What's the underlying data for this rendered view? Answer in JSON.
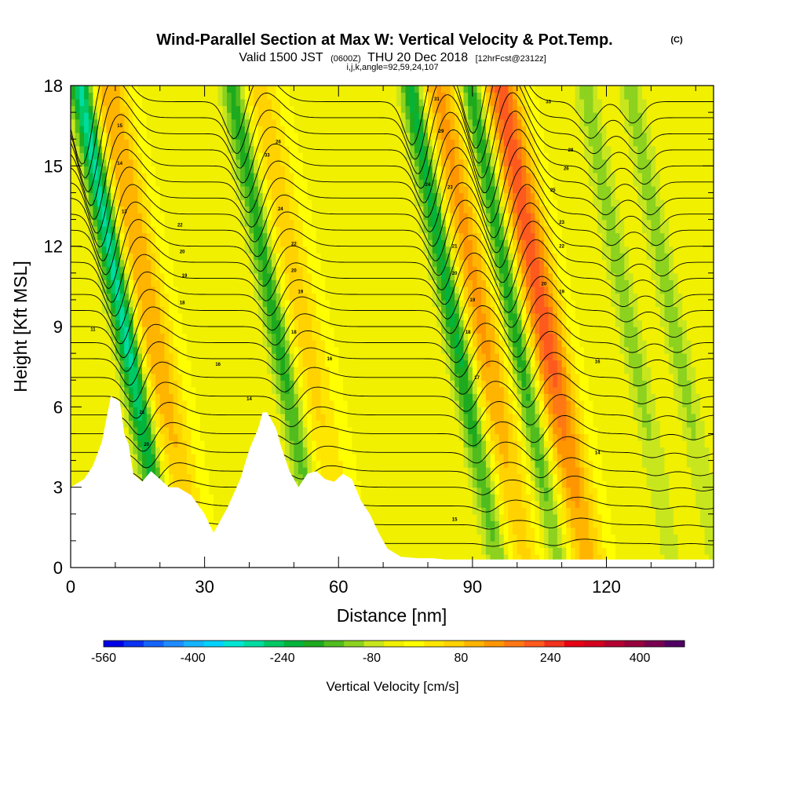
{
  "chart_data": {
    "type": "heatmap",
    "title": "Wind-Parallel Section at Max W: Vertical Velocity & Pot.Temp.",
    "title_mark": "(C)",
    "subtitle": {
      "valid_prefix": "Valid 1500 JST",
      "utc": "(0600Z)",
      "date": "THU 20 Dec 2018",
      "forecast": "[12hrFcst@2312z]"
    },
    "subtitle2": "i,j,k,angle=92,59,24,107",
    "xlabel": "Distance [nm]",
    "ylabel": "Height [Kft MSL]",
    "xlim": [
      0,
      144
    ],
    "ylim": [
      0,
      18
    ],
    "x_ticks": [
      0,
      30,
      60,
      90,
      120
    ],
    "x_tick_labels": [
      "0",
      "30",
      "60",
      "90",
      "120"
    ],
    "y_ticks": [
      0,
      3,
      6,
      9,
      12,
      15,
      18
    ],
    "y_tick_labels": [
      "0",
      "3",
      "6",
      "9",
      "12",
      "15",
      "18"
    ],
    "colorbar": {
      "label": "Vertical Velocity [cm/s]",
      "min": -560,
      "max": 480,
      "step": 40,
      "tick_values": [
        -560,
        -400,
        -240,
        -80,
        80,
        240,
        400
      ],
      "tick_labels": [
        "-560",
        "-400",
        "-240",
        "-80",
        "80",
        "240",
        "400"
      ],
      "colors": [
        "#0000e6",
        "#0a32f0",
        "#1464fa",
        "#1e8cff",
        "#14b4ff",
        "#00d2ff",
        "#00e6d2",
        "#00dca0",
        "#00c864",
        "#00b43c",
        "#1eaa1e",
        "#50bc1e",
        "#8cd21e",
        "#c8e61e",
        "#f0f000",
        "#ffff00",
        "#ffe600",
        "#ffd200",
        "#ffb400",
        "#ff9600",
        "#ff7814",
        "#ff5a1e",
        "#f0321e",
        "#e60014",
        "#d2001e",
        "#b40032",
        "#96003c",
        "#780050",
        "#500064"
      ]
    },
    "vertical_velocity_extrema": [
      {
        "x": 11,
        "w": -300
      },
      {
        "x": 17,
        "w": 170
      },
      {
        "x": 45,
        "w": -180
      },
      {
        "x": 51,
        "w": 110
      },
      {
        "x": 85,
        "w": -220
      },
      {
        "x": 91,
        "w": 180
      },
      {
        "x": 98.5,
        "w": -200
      },
      {
        "x": 105,
        "w": 270
      },
      {
        "x": 124,
        "w": -90
      },
      {
        "x": 134,
        "w": -90
      }
    ],
    "terrain_profile": {
      "x": [
        0,
        3,
        5,
        7,
        9,
        11,
        12,
        13,
        14,
        16,
        18,
        20,
        22,
        24,
        27,
        30,
        32,
        35,
        38,
        40,
        42,
        43,
        44,
        46,
        47,
        49,
        51,
        53,
        55,
        57,
        59,
        61,
        63,
        65,
        67,
        69,
        71,
        74,
        78,
        81,
        84,
        87,
        90,
        100,
        110,
        120,
        130,
        144
      ],
      "height_kft": [
        3,
        3.3,
        3.8,
        4.7,
        6.4,
        6.2,
        5.0,
        4.6,
        3.5,
        3.2,
        3.6,
        3.3,
        3.0,
        3.0,
        2.7,
        2.0,
        1.3,
        2.2,
        3.3,
        4.4,
        5.2,
        5.8,
        5.8,
        5.2,
        4.6,
        3.6,
        3.0,
        3.5,
        3.6,
        3.3,
        3.2,
        3.5,
        3.3,
        2.5,
        2.0,
        1.3,
        0.7,
        0.4,
        0.35,
        0.35,
        0.3,
        0.3,
        0.3,
        0.3,
        0.3,
        0.3,
        0.3,
        0.3
      ]
    },
    "potential_temperature_contours": {
      "levels_bottom_height_kft": [
        0.9,
        1.6,
        2.3,
        3.0,
        3.6,
        4.3,
        5.0,
        5.7,
        6.4,
        7.1,
        7.8,
        8.4,
        9.0,
        9.6,
        10.2,
        10.8,
        11.4,
        12.0,
        12.6,
        13.2,
        13.8,
        14.4,
        15.0,
        15.6,
        16.2,
        16.8,
        17.4
      ],
      "labels": [
        {
          "x": 5,
          "y": 8.9,
          "text": "11"
        },
        {
          "x": 11,
          "y": 16.5,
          "text": "15"
        },
        {
          "x": 11,
          "y": 15.1,
          "text": "14"
        },
        {
          "x": 12,
          "y": 13.3,
          "text": "13"
        },
        {
          "x": 16,
          "y": 5.8,
          "text": "21"
        },
        {
          "x": 17,
          "y": 4.6,
          "text": "20"
        },
        {
          "x": 24.5,
          "y": 12.8,
          "text": "22"
        },
        {
          "x": 25,
          "y": 11.8,
          "text": "20"
        },
        {
          "x": 25.5,
          "y": 10.9,
          "text": "19"
        },
        {
          "x": 25,
          "y": 9.9,
          "text": "18"
        },
        {
          "x": 33,
          "y": 7.6,
          "text": "16"
        },
        {
          "x": 40,
          "y": 6.3,
          "text": "14"
        },
        {
          "x": 44,
          "y": 15.4,
          "text": "33"
        },
        {
          "x": 46.5,
          "y": 15.9,
          "text": "26"
        },
        {
          "x": 47,
          "y": 13.4,
          "text": "24"
        },
        {
          "x": 50,
          "y": 12.1,
          "text": "22"
        },
        {
          "x": 50,
          "y": 11.1,
          "text": "20"
        },
        {
          "x": 51.5,
          "y": 10.3,
          "text": "19"
        },
        {
          "x": 50,
          "y": 8.8,
          "text": "18"
        },
        {
          "x": 58,
          "y": 7.8,
          "text": "16"
        },
        {
          "x": 82,
          "y": 17.5,
          "text": "31"
        },
        {
          "x": 83,
          "y": 16.3,
          "text": "29"
        },
        {
          "x": 80,
          "y": 14.3,
          "text": "24"
        },
        {
          "x": 85,
          "y": 14.2,
          "text": "23"
        },
        {
          "x": 86,
          "y": 12.0,
          "text": "21"
        },
        {
          "x": 86,
          "y": 11.0,
          "text": "20"
        },
        {
          "x": 90,
          "y": 10.0,
          "text": "19"
        },
        {
          "x": 89,
          "y": 8.8,
          "text": "18"
        },
        {
          "x": 91,
          "y": 7.1,
          "text": "17"
        },
        {
          "x": 86,
          "y": 1.8,
          "text": "15"
        },
        {
          "x": 107,
          "y": 17.4,
          "text": "33"
        },
        {
          "x": 112,
          "y": 15.6,
          "text": "28"
        },
        {
          "x": 111,
          "y": 14.9,
          "text": "26"
        },
        {
          "x": 108,
          "y": 14.1,
          "text": "25"
        },
        {
          "x": 110,
          "y": 12.9,
          "text": "23"
        },
        {
          "x": 110,
          "y": 12.0,
          "text": "22"
        },
        {
          "x": 106,
          "y": 10.6,
          "text": "20"
        },
        {
          "x": 110,
          "y": 10.3,
          "text": "19"
        },
        {
          "x": 118,
          "y": 7.7,
          "text": "16"
        },
        {
          "x": 118,
          "y": 4.3,
          "text": "14"
        }
      ]
    },
    "grid": false
  }
}
